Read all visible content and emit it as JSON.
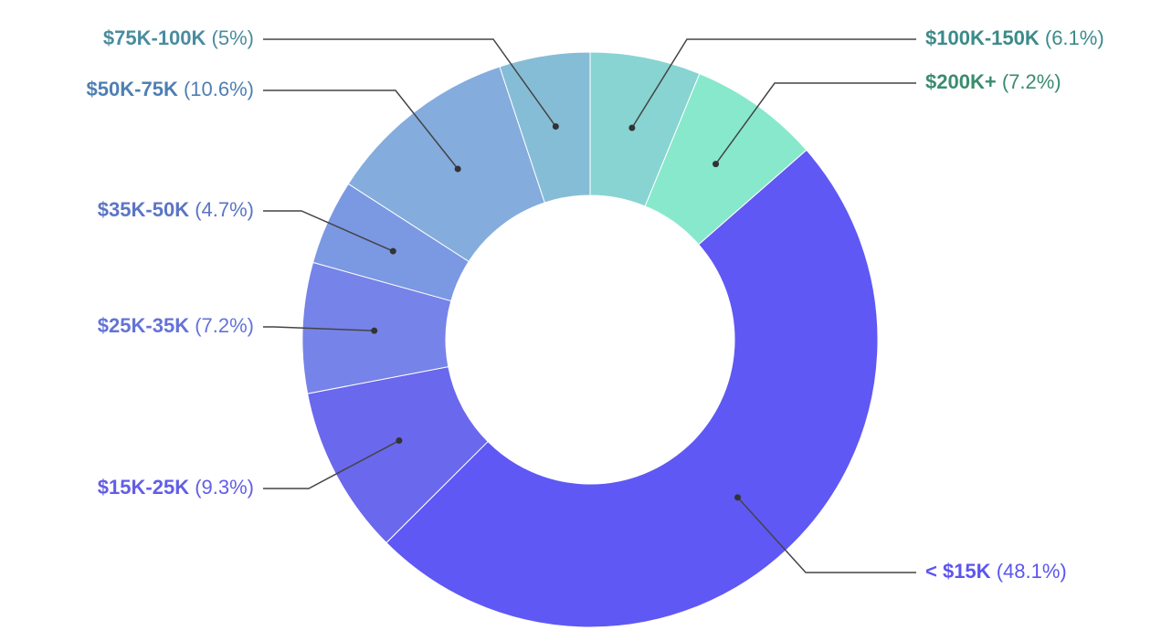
{
  "chart_data": {
    "type": "donut",
    "categories": [
      "$100K-150K",
      "$200K+",
      "< $15K",
      "$15K-25K",
      "$25K-35K",
      "$35K-50K",
      "$50K-75K",
      "$75K-100K"
    ],
    "values": [
      6.1,
      7.2,
      48.1,
      9.3,
      7.2,
      4.7,
      10.6,
      5
    ],
    "value_labels": [
      "(6.1%)",
      "(7.2%)",
      "(48.1%)",
      "(9.3%)",
      "(7.2%)",
      "(4.7%)",
      "(10.6%)",
      "(5%)"
    ],
    "colors": [
      "#88d4d2",
      "#88e8cc",
      "#5f58f4",
      "#6a68ec",
      "#7683e8",
      "#7b98e2",
      "#84acdd",
      "#86bdd6"
    ],
    "label_colors": [
      "#3b8b8a",
      "#3a8c6e",
      "#5c55f0",
      "#625ee6",
      "#6473d8",
      "#5b75c6",
      "#4f7fb3",
      "#4a8c9e"
    ]
  }
}
